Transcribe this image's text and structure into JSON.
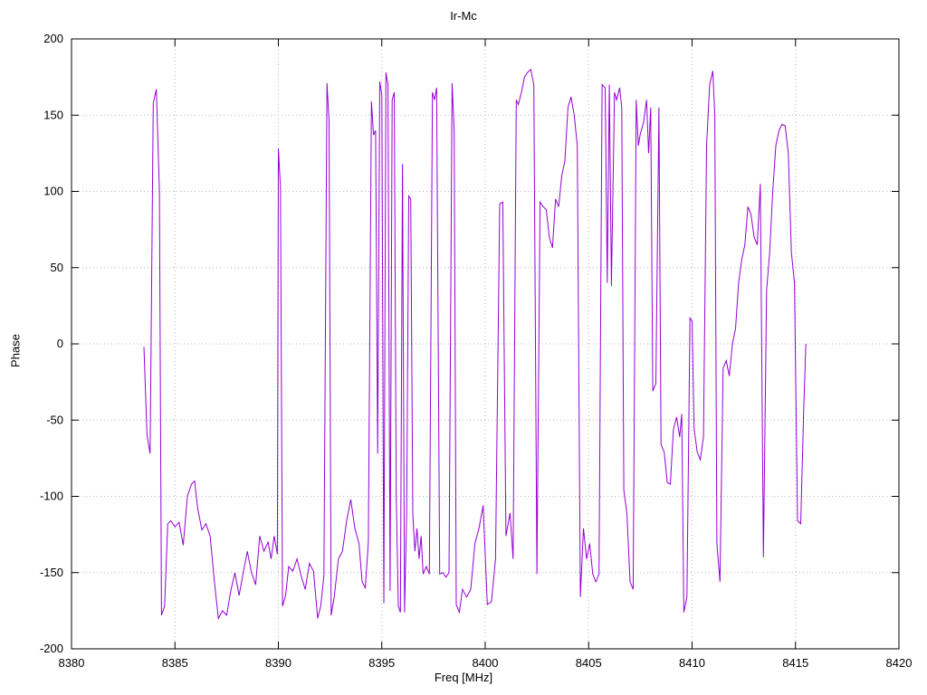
{
  "chart_data": {
    "type": "line",
    "title": "Ir-Mc",
    "xlabel": "Freq [MHz]",
    "ylabel": "Phase",
    "xlim": [
      8380,
      8420
    ],
    "ylim": [
      -200,
      200
    ],
    "xticks": [
      8380,
      8385,
      8390,
      8395,
      8400,
      8405,
      8410,
      8415,
      8420
    ],
    "yticks": [
      -200,
      -150,
      -100,
      -50,
      0,
      50,
      100,
      150,
      200
    ],
    "grid": true,
    "legend_position": "none",
    "line_color": "#9400d3",
    "grid_color": "#b5b5c5",
    "series": [
      {
        "name": "Ir-Mc phase",
        "points": [
          [
            8383.5,
            -2
          ],
          [
            8383.65,
            -60
          ],
          [
            8383.8,
            -72
          ],
          [
            8383.95,
            158
          ],
          [
            8384.1,
            167
          ],
          [
            8384.25,
            100
          ],
          [
            8384.35,
            -178
          ],
          [
            8384.5,
            -172
          ],
          [
            8384.65,
            -118
          ],
          [
            8384.8,
            -116
          ],
          [
            8385.0,
            -120
          ],
          [
            8385.2,
            -117
          ],
          [
            8385.4,
            -132
          ],
          [
            8385.6,
            -100
          ],
          [
            8385.8,
            -92
          ],
          [
            8385.95,
            -90
          ],
          [
            8386.1,
            -108
          ],
          [
            8386.3,
            -122
          ],
          [
            8386.5,
            -118
          ],
          [
            8386.7,
            -126
          ],
          [
            8386.9,
            -155
          ],
          [
            8387.1,
            -180
          ],
          [
            8387.3,
            -175
          ],
          [
            8387.5,
            -178
          ],
          [
            8387.7,
            -162
          ],
          [
            8387.9,
            -150
          ],
          [
            8388.1,
            -165
          ],
          [
            8388.3,
            -150
          ],
          [
            8388.5,
            -136
          ],
          [
            8388.7,
            -150
          ],
          [
            8388.9,
            -158
          ],
          [
            8389.1,
            -126
          ],
          [
            8389.3,
            -136
          ],
          [
            8389.5,
            -130
          ],
          [
            8389.65,
            -141
          ],
          [
            8389.8,
            -126
          ],
          [
            8389.95,
            -138
          ],
          [
            8390.0,
            128
          ],
          [
            8390.1,
            103
          ],
          [
            8390.2,
            -172
          ],
          [
            8390.35,
            -165
          ],
          [
            8390.5,
            -146
          ],
          [
            8390.7,
            -149
          ],
          [
            8390.9,
            -141
          ],
          [
            8391.1,
            -152
          ],
          [
            8391.3,
            -161
          ],
          [
            8391.5,
            -144
          ],
          [
            8391.7,
            -149
          ],
          [
            8391.9,
            -180
          ],
          [
            8392.05,
            -172
          ],
          [
            8392.2,
            -152
          ],
          [
            8392.35,
            171
          ],
          [
            8392.45,
            146
          ],
          [
            8392.55,
            -178
          ],
          [
            8392.7,
            -166
          ],
          [
            8392.9,
            -141
          ],
          [
            8393.1,
            -136
          ],
          [
            8393.3,
            -116
          ],
          [
            8393.5,
            -102
          ],
          [
            8393.7,
            -121
          ],
          [
            8393.9,
            -131
          ],
          [
            8394.05,
            -156
          ],
          [
            8394.2,
            -160
          ],
          [
            8394.35,
            -130
          ],
          [
            8394.5,
            159
          ],
          [
            8394.6,
            137
          ],
          [
            8394.7,
            140
          ],
          [
            8394.8,
            -72
          ],
          [
            8394.9,
            172
          ],
          [
            8395.0,
            163
          ],
          [
            8395.1,
            -170
          ],
          [
            8395.2,
            178
          ],
          [
            8395.3,
            170
          ],
          [
            8395.4,
            -162
          ],
          [
            8395.5,
            160
          ],
          [
            8395.6,
            165
          ],
          [
            8395.7,
            -100
          ],
          [
            8395.8,
            -172
          ],
          [
            8395.9,
            -176
          ],
          [
            8396.0,
            118
          ],
          [
            8396.1,
            -176
          ],
          [
            8396.2,
            -112
          ],
          [
            8396.3,
            97
          ],
          [
            8396.4,
            95
          ],
          [
            8396.5,
            -112
          ],
          [
            8396.6,
            -136
          ],
          [
            8396.7,
            -121
          ],
          [
            8396.8,
            -141
          ],
          [
            8396.9,
            -126
          ],
          [
            8397.0,
            -151
          ],
          [
            8397.15,
            -146
          ],
          [
            8397.3,
            -151
          ],
          [
            8397.45,
            165
          ],
          [
            8397.55,
            160
          ],
          [
            8397.65,
            168
          ],
          [
            8397.8,
            -151
          ],
          [
            8397.95,
            -150
          ],
          [
            8398.1,
            -153
          ],
          [
            8398.25,
            -150
          ],
          [
            8398.4,
            171
          ],
          [
            8398.5,
            140
          ],
          [
            8398.6,
            -171
          ],
          [
            8398.75,
            -176
          ],
          [
            8398.9,
            -161
          ],
          [
            8399.1,
            -166
          ],
          [
            8399.3,
            -161
          ],
          [
            8399.5,
            -131
          ],
          [
            8399.7,
            -121
          ],
          [
            8399.9,
            -106
          ],
          [
            8400.1,
            -171
          ],
          [
            8400.3,
            -169
          ],
          [
            8400.5,
            -141
          ],
          [
            8400.7,
            92
          ],
          [
            8400.85,
            93
          ],
          [
            8401.0,
            -126
          ],
          [
            8401.2,
            -111
          ],
          [
            8401.35,
            -141
          ],
          [
            8401.5,
            160
          ],
          [
            8401.6,
            157
          ],
          [
            8401.75,
            165
          ],
          [
            8401.9,
            175
          ],
          [
            8402.05,
            178
          ],
          [
            8402.2,
            180
          ],
          [
            8402.35,
            170
          ],
          [
            8402.5,
            -151
          ],
          [
            8402.65,
            93
          ],
          [
            8402.8,
            90
          ],
          [
            8402.95,
            88
          ],
          [
            8403.1,
            70
          ],
          [
            8403.25,
            63
          ],
          [
            8403.4,
            95
          ],
          [
            8403.55,
            90
          ],
          [
            8403.7,
            110
          ],
          [
            8403.85,
            120
          ],
          [
            8404.0,
            155
          ],
          [
            8404.15,
            162
          ],
          [
            8404.3,
            150
          ],
          [
            8404.45,
            130
          ],
          [
            8404.6,
            -166
          ],
          [
            8404.75,
            -121
          ],
          [
            8404.9,
            -141
          ],
          [
            8405.05,
            -131
          ],
          [
            8405.2,
            -151
          ],
          [
            8405.35,
            -156
          ],
          [
            8405.5,
            -151
          ],
          [
            8405.65,
            170
          ],
          [
            8405.8,
            168
          ],
          [
            8405.9,
            40
          ],
          [
            8406.0,
            170
          ],
          [
            8406.1,
            38
          ],
          [
            8406.25,
            165
          ],
          [
            8406.35,
            160
          ],
          [
            8406.5,
            168
          ],
          [
            8406.6,
            155
          ],
          [
            8406.7,
            -96
          ],
          [
            8406.85,
            -111
          ],
          [
            8407.0,
            -156
          ],
          [
            8407.15,
            -161
          ],
          [
            8407.3,
            160
          ],
          [
            8407.4,
            130
          ],
          [
            8407.5,
            138
          ],
          [
            8407.65,
            145
          ],
          [
            8407.8,
            160
          ],
          [
            8407.9,
            125
          ],
          [
            8408.0,
            155
          ],
          [
            8408.1,
            -31
          ],
          [
            8408.25,
            -26
          ],
          [
            8408.4,
            155
          ],
          [
            8408.5,
            -66
          ],
          [
            8408.65,
            -71
          ],
          [
            8408.8,
            -91
          ],
          [
            8408.95,
            -92
          ],
          [
            8409.1,
            -56
          ],
          [
            8409.25,
            -48
          ],
          [
            8409.4,
            -61
          ],
          [
            8409.5,
            -46
          ],
          [
            8409.6,
            -176
          ],
          [
            8409.75,
            -166
          ],
          [
            8409.9,
            17
          ],
          [
            8410.0,
            15
          ],
          [
            8410.1,
            -56
          ],
          [
            8410.25,
            -71
          ],
          [
            8410.4,
            -76
          ],
          [
            8410.55,
            -61
          ],
          [
            8410.7,
            130
          ],
          [
            8410.85,
            170
          ],
          [
            8411.0,
            179
          ],
          [
            8411.1,
            150
          ],
          [
            8411.2,
            -131
          ],
          [
            8411.35,
            -156
          ],
          [
            8411.5,
            -16
          ],
          [
            8411.65,
            -11
          ],
          [
            8411.8,
            -21
          ],
          [
            8411.95,
            0
          ],
          [
            8412.1,
            10
          ],
          [
            8412.25,
            40
          ],
          [
            8412.4,
            55
          ],
          [
            8412.55,
            65
          ],
          [
            8412.7,
            90
          ],
          [
            8412.85,
            85
          ],
          [
            8413.0,
            70
          ],
          [
            8413.15,
            65
          ],
          [
            8413.3,
            105
          ],
          [
            8413.45,
            -140
          ],
          [
            8413.6,
            35
          ],
          [
            8413.75,
            60
          ],
          [
            8413.9,
            100
          ],
          [
            8414.05,
            130
          ],
          [
            8414.2,
            140
          ],
          [
            8414.35,
            144
          ],
          [
            8414.5,
            143
          ],
          [
            8414.65,
            125
          ],
          [
            8414.8,
            60
          ],
          [
            8414.95,
            40
          ],
          [
            8415.1,
            -116
          ],
          [
            8415.25,
            -118
          ],
          [
            8415.4,
            -41
          ],
          [
            8415.5,
            0
          ]
        ]
      }
    ]
  }
}
